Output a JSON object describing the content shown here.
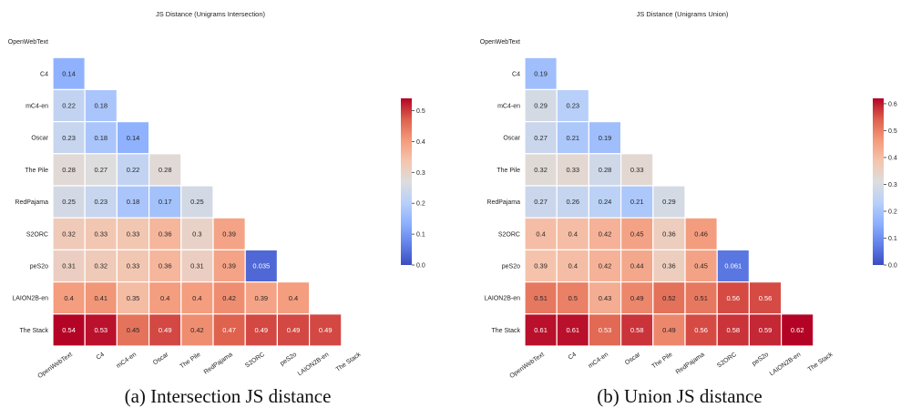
{
  "chart_data": [
    {
      "type": "heatmap",
      "title": "JS Distance (Unigrams Intersection)",
      "caption": "(a) Intersection JS distance",
      "rows": [
        "OpenWebText",
        "C4",
        "mC4-en",
        "Oscar",
        "The Pile",
        "RedPajama",
        "S2ORC",
        "peS2o",
        "LAION2B-en",
        "The Stack"
      ],
      "columns": [
        "OpenWebText",
        "C4",
        "mC4-en",
        "Oscar",
        "The Pile",
        "RedPajama",
        "S2ORC",
        "peS2o",
        "LAION2B-en",
        "The Stack"
      ],
      "mask": "upper-triangle-including-diagonal",
      "values": [
        [],
        [
          "0.14"
        ],
        [
          "0.22",
          "0.18"
        ],
        [
          "0.23",
          "0.18",
          "0.14"
        ],
        [
          "0.28",
          "0.27",
          "0.22",
          "0.28"
        ],
        [
          "0.25",
          "0.23",
          "0.18",
          "0.17",
          "0.25"
        ],
        [
          "0.32",
          "0.33",
          "0.33",
          "0.36",
          "0.3",
          "0.39"
        ],
        [
          "0.31",
          "0.32",
          "0.33",
          "0.36",
          "0.31",
          "0.39",
          "0.035"
        ],
        [
          "0.4",
          "0.41",
          "0.35",
          "0.4",
          "0.4",
          "0.42",
          "0.39",
          "0.4"
        ],
        [
          "0.54",
          "0.53",
          "0.45",
          "0.49",
          "0.42",
          "0.47",
          "0.49",
          "0.49",
          "0.49"
        ]
      ],
      "colorbar": {
        "vmin": 0.0,
        "vmax": 0.54,
        "ticks": [
          "0.0",
          "0.1",
          "0.2",
          "0.3",
          "0.4",
          "0.5"
        ],
        "colormap": "coolwarm"
      },
      "grid": false
    },
    {
      "type": "heatmap",
      "title": "JS Distance (Unigrams Union)",
      "caption": "(b) Union JS distance",
      "rows": [
        "OpenWebText",
        "C4",
        "mC4-en",
        "Oscar",
        "The Pile",
        "RedPajama",
        "S2ORC",
        "peS2o",
        "LAION2B-en",
        "The Stack"
      ],
      "columns": [
        "OpenWebText",
        "C4",
        "mC4-en",
        "Oscar",
        "The Pile",
        "RedPajama",
        "S2ORC",
        "peS2o",
        "LAION2B-en",
        "The Stack"
      ],
      "mask": "upper-triangle-including-diagonal",
      "values": [
        [],
        [
          "0.19"
        ],
        [
          "0.29",
          "0.23"
        ],
        [
          "0.27",
          "0.21",
          "0.19"
        ],
        [
          "0.32",
          "0.33",
          "0.28",
          "0.33"
        ],
        [
          "0.27",
          "0.26",
          "0.24",
          "0.21",
          "0.29"
        ],
        [
          "0.4",
          "0.4",
          "0.42",
          "0.45",
          "0.36",
          "0.46"
        ],
        [
          "0.39",
          "0.4",
          "0.42",
          "0.44",
          "0.36",
          "0.45",
          "0.061"
        ],
        [
          "0.51",
          "0.5",
          "0.43",
          "0.49",
          "0.52",
          "0.51",
          "0.56",
          "0.56"
        ],
        [
          "0.61",
          "0.61",
          "0.53",
          "0.58",
          "0.49",
          "0.56",
          "0.58",
          "0.59",
          "0.62"
        ]
      ],
      "colorbar": {
        "vmin": 0.0,
        "vmax": 0.62,
        "ticks": [
          "0.0",
          "0.1",
          "0.2",
          "0.3",
          "0.4",
          "0.5",
          "0.6"
        ],
        "colormap": "coolwarm"
      },
      "grid": false
    }
  ]
}
